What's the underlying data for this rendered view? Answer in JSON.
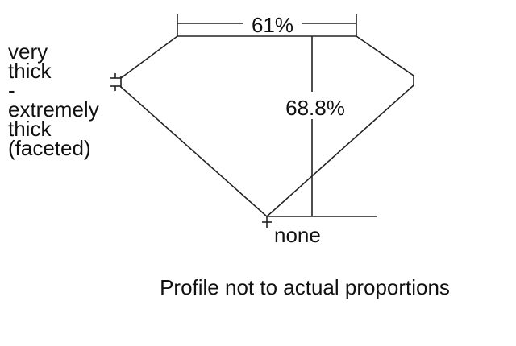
{
  "table_percent": "61%",
  "depth_percent": "68.8%",
  "girdle_label": [
    "very",
    "thick",
    "-",
    "extremely",
    "thick",
    "(faceted)"
  ],
  "culet_label": "none",
  "caption": "Profile not to actual proportions"
}
